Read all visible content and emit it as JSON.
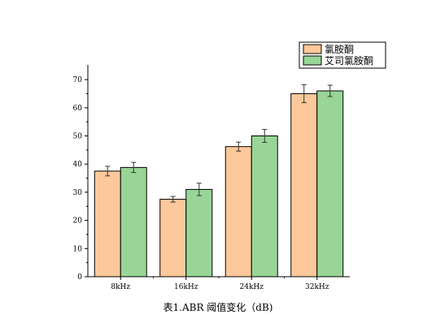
{
  "chart_data": {
    "type": "bar",
    "title": "表1.ABR 阈值变化（dB)",
    "xlabel": "",
    "ylabel": "",
    "categories": [
      "8kHz",
      "16kHz",
      "24kHz",
      "32kHz"
    ],
    "ylim": [
      0,
      75
    ],
    "yticks": [
      0,
      10,
      20,
      30,
      40,
      50,
      60,
      70
    ],
    "grid": false,
    "legend_position": "top-right",
    "series": [
      {
        "name": "氯胺酮",
        "color": "#fdc89a",
        "values": [
          37.5,
          27.5,
          46.2,
          65.0
        ],
        "errors": [
          1.7,
          1.0,
          1.6,
          3.2
        ]
      },
      {
        "name": "艾司氯胺酮",
        "color": "#98d596",
        "values": [
          38.8,
          31.0,
          50.0,
          66.0
        ],
        "errors": [
          1.8,
          2.2,
          2.3,
          2.0
        ]
      }
    ]
  }
}
